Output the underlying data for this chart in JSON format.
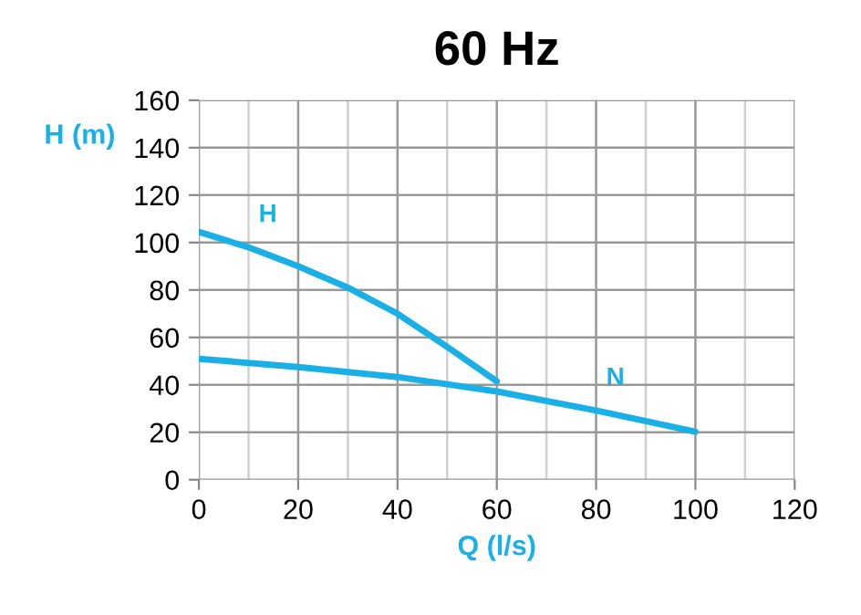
{
  "chart_data": {
    "type": "line",
    "title": "60 Hz",
    "xlabel": "Q (l/s)",
    "ylabel": "H (m)",
    "xlim": [
      0,
      120
    ],
    "xticks": [
      0,
      20,
      40,
      60,
      80,
      100,
      120
    ],
    "ylim": [
      0,
      160
    ],
    "yticks": [
      0,
      20,
      40,
      60,
      80,
      100,
      120,
      140,
      160
    ],
    "grid": true,
    "marker": "none",
    "line_style": "solid",
    "series": [
      {
        "name": "H",
        "color": "#1ab0e6",
        "x": [
          0,
          10,
          20,
          30,
          40,
          50,
          60
        ],
        "values": [
          104.5,
          98,
          90,
          81,
          70,
          56,
          41.5
        ]
      },
      {
        "name": "N",
        "color": "#1ab0e6",
        "x": [
          0,
          20,
          40,
          60,
          80,
          100
        ],
        "values": [
          51,
          47.5,
          43.3,
          37.2,
          29.2,
          20.2
        ]
      }
    ]
  }
}
